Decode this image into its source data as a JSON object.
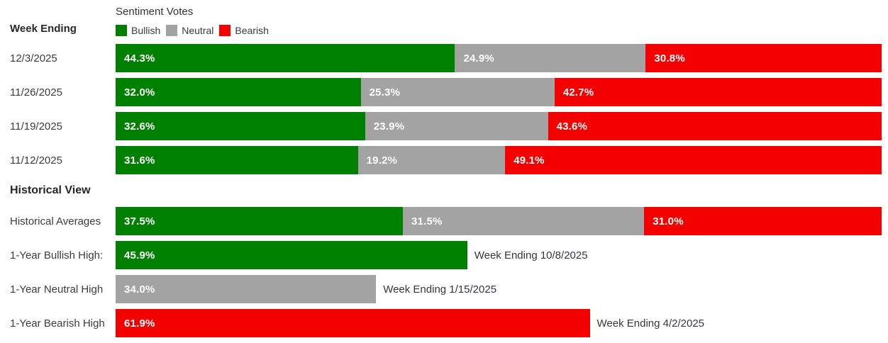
{
  "header": {
    "week_ending_label": "Week Ending",
    "chart_title": "Sentiment Votes"
  },
  "legend": [
    {
      "name": "Bullish",
      "color": "#008000"
    },
    {
      "name": "Neutral",
      "color": "#a3a3a3"
    },
    {
      "name": "Bearish",
      "color": "#f40000"
    }
  ],
  "section_heading": "Historical View",
  "colors": {
    "bullish": "#008000",
    "neutral": "#a3a3a3",
    "bearish": "#f40000",
    "bar_value_text": "#ffffff",
    "label_text": "#3b3b41"
  },
  "chart_data": {
    "type": "bar",
    "orientation": "horizontal",
    "stacked": true,
    "unit": "percent",
    "x_range": [
      0,
      100
    ],
    "series_names": [
      "Bullish",
      "Neutral",
      "Bearish"
    ],
    "weekly_rows": [
      {
        "label": "12/3/2025",
        "bullish": 44.3,
        "neutral": 24.9,
        "bearish": 30.8
      },
      {
        "label": "11/26/2025",
        "bullish": 32.0,
        "neutral": 25.3,
        "bearish": 42.7
      },
      {
        "label": "11/19/2025",
        "bullish": 32.6,
        "neutral": 23.9,
        "bearish": 43.6
      },
      {
        "label": "11/12/2025",
        "bullish": 31.6,
        "neutral": 19.2,
        "bearish": 49.1
      }
    ],
    "historical_rows": [
      {
        "label": "Historical Averages",
        "kind": "stacked",
        "bullish": 37.5,
        "neutral": 31.5,
        "bearish": 31.0
      },
      {
        "label": "1-Year Bullish High:",
        "kind": "single",
        "series": "bullish",
        "value": 45.9,
        "annotation": "Week Ending 10/8/2025"
      },
      {
        "label": "1-Year Neutral High",
        "kind": "single",
        "series": "neutral",
        "value": 34.0,
        "annotation": "Week Ending 1/15/2025"
      },
      {
        "label": "1-Year Bearish High",
        "kind": "single",
        "series": "bearish",
        "value": 61.9,
        "annotation": "Week Ending 4/2/2025"
      }
    ]
  }
}
